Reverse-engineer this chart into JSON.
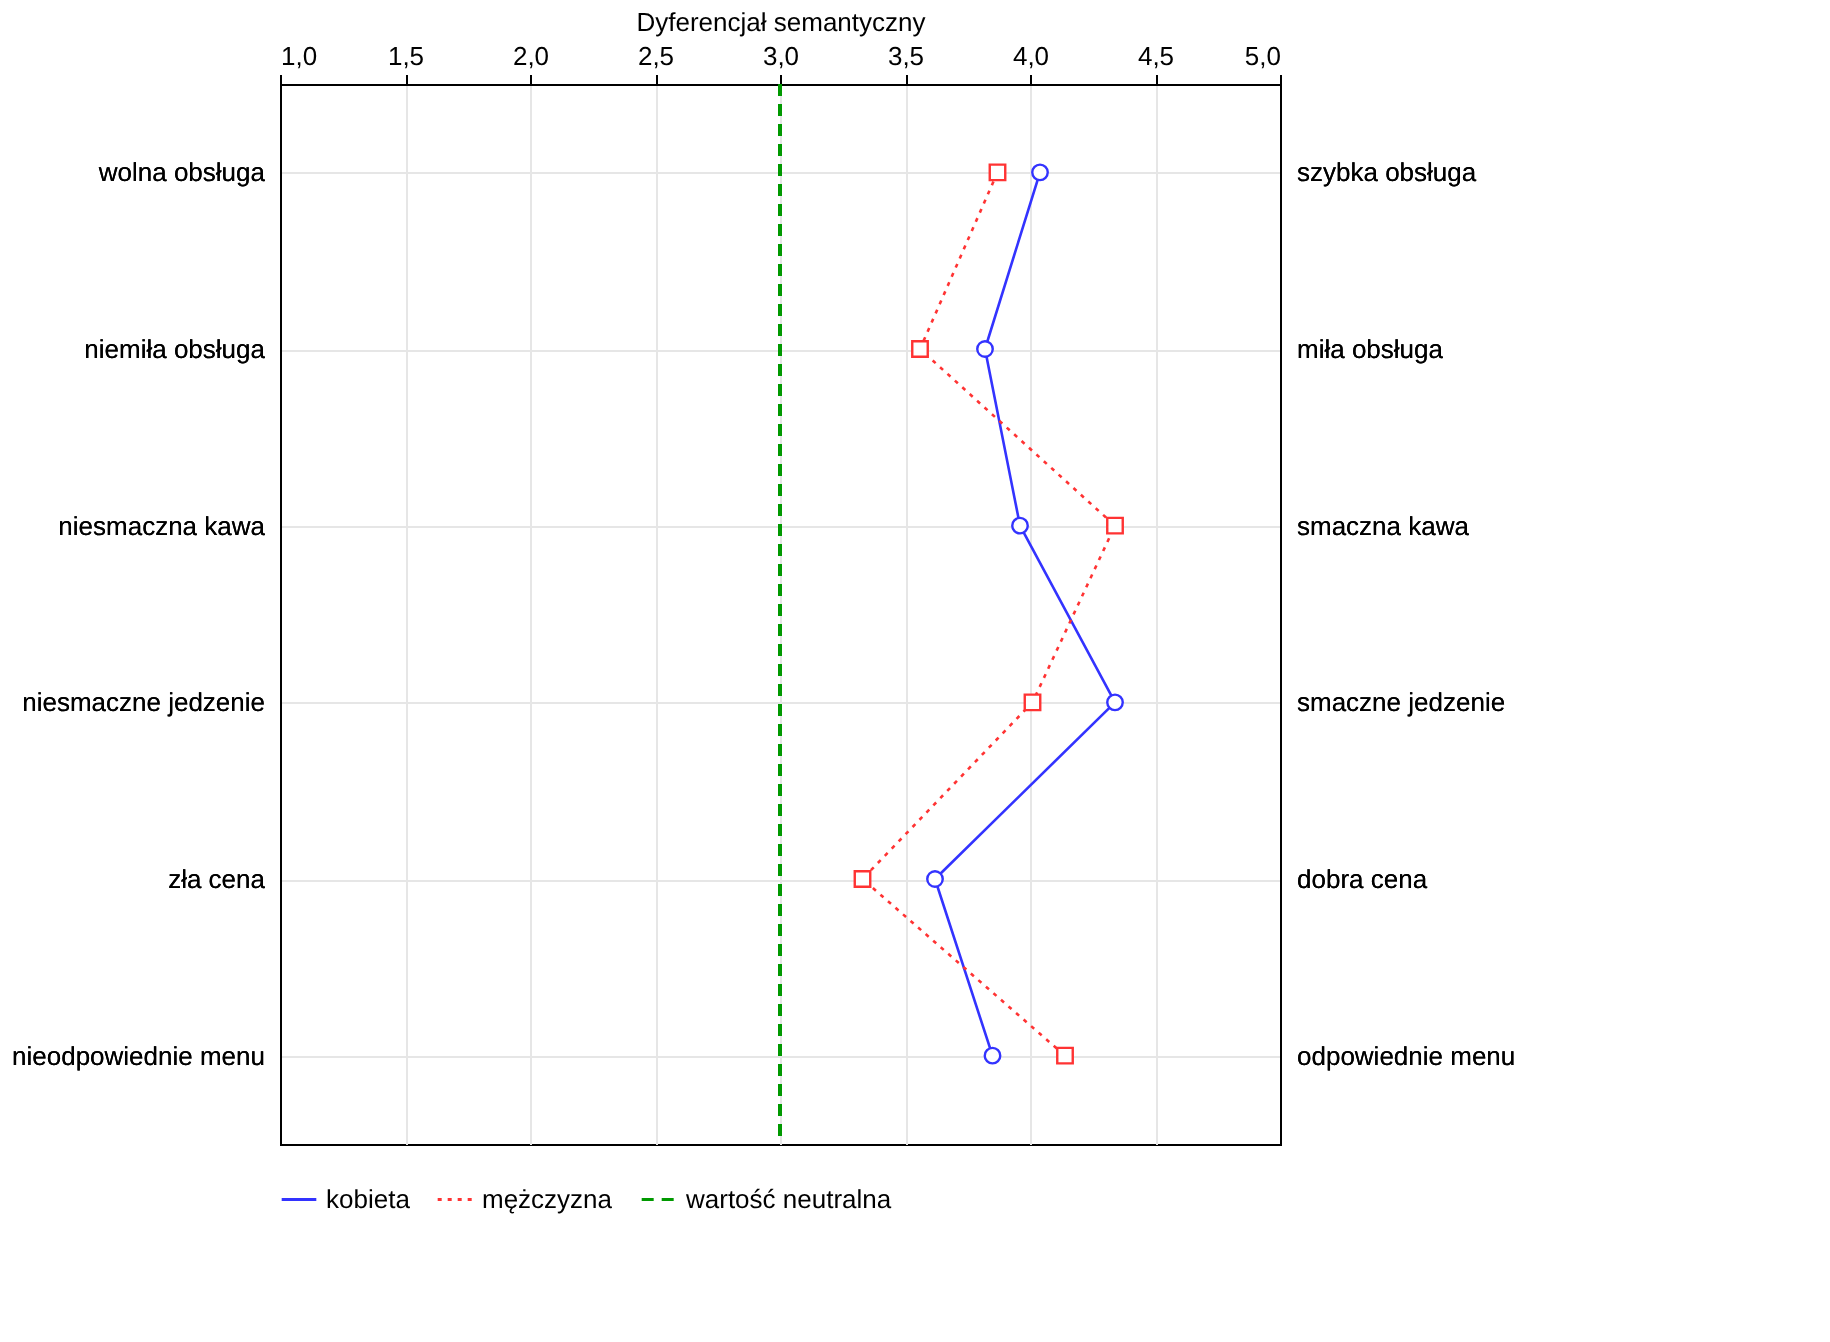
{
  "chart_data": {
    "type": "line",
    "orientation": "horizontal",
    "xlabel": "Dyferencjał semantyczny",
    "categories": [
      "wolna obsługa",
      "niemiła obsługa",
      "niesmaczna kawa",
      "niesmaczne jedzenie",
      "zła cena",
      "nieodpowiednie menu"
    ],
    "y2_categories": [
      "szybka obsługa",
      "miła obsługa",
      "smaczna kawa",
      "smaczne jedzenie",
      "dobra cena",
      "odpowiednie menu"
    ],
    "series": [
      {
        "name": "kobieta",
        "color": "#3333ff",
        "marker": "circle",
        "line_style": "solid",
        "values": [
          4.04,
          3.82,
          3.96,
          4.34,
          3.62,
          3.85
        ]
      },
      {
        "name": "mężczyzna",
        "color": "#ff3333",
        "marker": "square",
        "line_style": "dotted",
        "values": [
          3.87,
          3.56,
          4.34,
          4.01,
          3.33,
          4.14
        ]
      }
    ],
    "ref_lines": [
      {
        "axis": "x",
        "value": 3.0,
        "label": "wartość neutralna",
        "color": "#009900",
        "line_style": "dashed"
      }
    ],
    "xlim": [
      1.0,
      5.0
    ],
    "xticks": [
      {
        "value": 1.0,
        "label": "1,0"
      },
      {
        "value": 1.5,
        "label": "1,5"
      },
      {
        "value": 2.0,
        "label": "2,0"
      },
      {
        "value": 2.5,
        "label": "2,5"
      },
      {
        "value": 3.0,
        "label": "3,0"
      },
      {
        "value": 3.5,
        "label": "3,5"
      },
      {
        "value": 4.0,
        "label": "4,0"
      },
      {
        "value": 4.5,
        "label": "4,5"
      },
      {
        "value": 5.0,
        "label": "5,0"
      }
    ],
    "grid": true,
    "legend": "bottom"
  }
}
